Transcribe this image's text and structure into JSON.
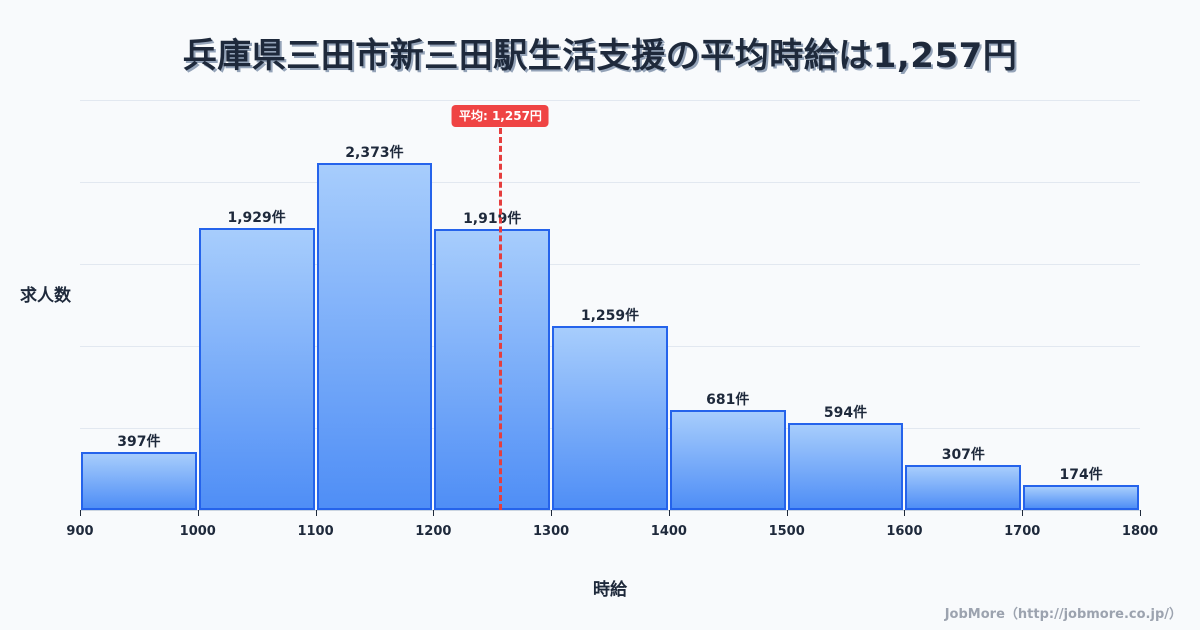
{
  "title": "兵庫県三田市新三田駅生活支援の平均時給は1,257円",
  "ylabel": "求人数",
  "xlabel": "時給",
  "footer": "JobMore（http://jobmore.co.jp/）",
  "mean": {
    "value": 1257,
    "label": "平均: 1,257円",
    "color": "#ef4444"
  },
  "colors": {
    "bar_border": "#2563eb",
    "bar_top": "#a7cdfc",
    "bar_bottom": "#4f8ef6",
    "mean_line": "#e53e3e"
  },
  "chart_data": {
    "type": "bar",
    "title": "兵庫県三田市新三田駅生活支援の平均時給は1,257円",
    "xlabel": "時給",
    "ylabel": "求人数",
    "bins": [
      900,
      1000,
      1100,
      1200,
      1300,
      1400,
      1500,
      1600,
      1700,
      1800
    ],
    "categories": [
      "900-1000",
      "1000-1100",
      "1100-1200",
      "1200-1300",
      "1300-1400",
      "1400-1500",
      "1500-1600",
      "1600-1700",
      "1700-1800"
    ],
    "values": [
      397,
      1929,
      2373,
      1919,
      1259,
      681,
      594,
      307,
      174
    ],
    "value_labels": [
      "397件",
      "1,929件",
      "2,373件",
      "1,919件",
      "1,259件",
      "681件",
      "594件",
      "307件",
      "174件"
    ],
    "x_ticks": [
      "900",
      "1000",
      "1100",
      "1200",
      "1300",
      "1400",
      "1500",
      "1600",
      "1700",
      "1800"
    ],
    "xlim": [
      900,
      1800
    ],
    "ylim": [
      0,
      2800
    ],
    "grid": true,
    "annotations": [
      {
        "type": "vline",
        "x": 1257,
        "label": "平均: 1,257円"
      }
    ]
  }
}
